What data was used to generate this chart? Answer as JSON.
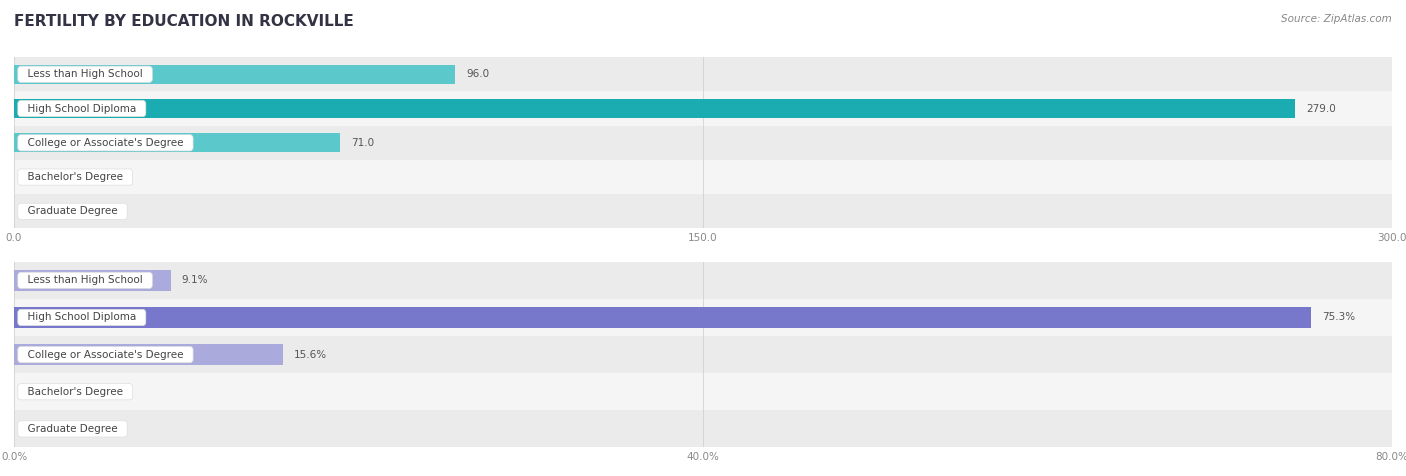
{
  "title": "FERTILITY BY EDUCATION IN ROCKVILLE",
  "source": "Source: ZipAtlas.com",
  "top_chart": {
    "categories": [
      "Less than High School",
      "High School Diploma",
      "College or Associate's Degree",
      "Bachelor's Degree",
      "Graduate Degree"
    ],
    "values": [
      96.0,
      279.0,
      71.0,
      0.0,
      0.0
    ],
    "bar_color_normal": "#5BC8CC",
    "bar_color_highlight": "#1AACB0",
    "highlight_index": 1,
    "xmax": 300.0,
    "xticks": [
      0.0,
      150.0,
      300.0
    ],
    "value_suffix": ""
  },
  "bottom_chart": {
    "categories": [
      "Less than High School",
      "High School Diploma",
      "College or Associate's Degree",
      "Bachelor's Degree",
      "Graduate Degree"
    ],
    "values": [
      9.1,
      75.3,
      15.6,
      0.0,
      0.0
    ],
    "bar_color_normal": "#AAAADD",
    "bar_color_highlight": "#7777CC",
    "highlight_index": 1,
    "xmax": 80.0,
    "xticks": [
      0.0,
      40.0,
      80.0
    ],
    "value_suffix": "%"
  },
  "title_color": "#333344",
  "source_color": "#888888",
  "title_fontsize": 11,
  "label_fontsize": 7.5,
  "value_fontsize": 7.5,
  "tick_fontsize": 7.5
}
